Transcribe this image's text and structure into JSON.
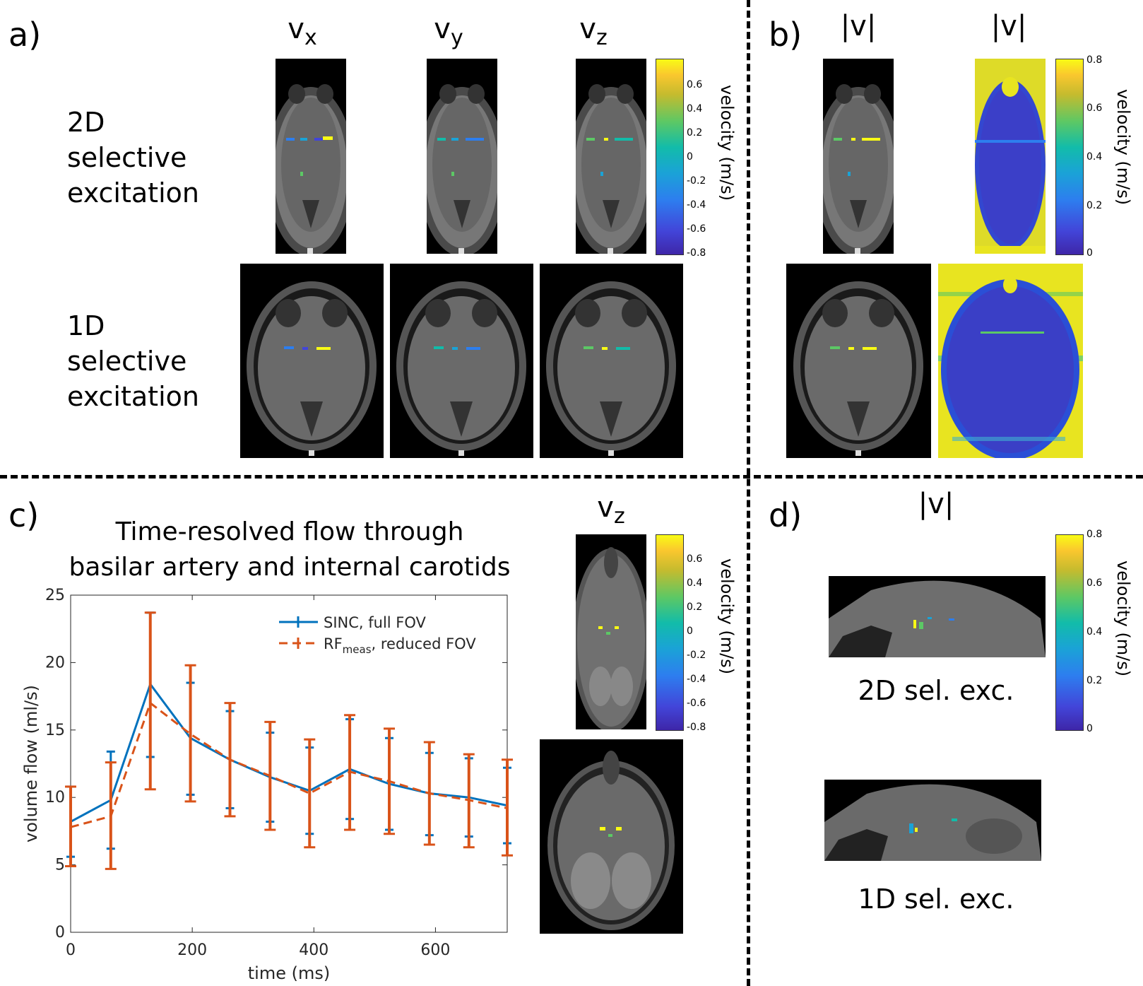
{
  "panels": {
    "a": {
      "label": "a)",
      "col_headers": [
        "v",
        "x",
        "v",
        "y",
        "v",
        "z"
      ],
      "row_labels": {
        "r2d": [
          "2D",
          "selective",
          "excitation"
        ],
        "r1d": [
          "1D",
          "selective",
          "excitation"
        ]
      },
      "colorbar": {
        "label": "velocity (m/s)",
        "ticks": [
          "0.6",
          "0.4",
          "0.2",
          "0",
          "-0.2",
          "-0.4",
          "-0.6",
          "-0.8"
        ]
      }
    },
    "b": {
      "label": "b)",
      "col_headers": [
        "|v|",
        "|v|"
      ],
      "colorbar": {
        "label": "velocity (m/s)",
        "ticks": [
          "0.8",
          "0.6",
          "0.4",
          "0.2",
          "0"
        ]
      }
    },
    "c": {
      "label": "c)",
      "image_header": [
        "v",
        "z"
      ],
      "colorbar": {
        "label": "velocity (m/s)",
        "ticks": [
          "0.6",
          "0.4",
          "0.2",
          "0",
          "-0.2",
          "-0.4",
          "-0.6",
          "-0.8"
        ]
      }
    },
    "d": {
      "label": "d)",
      "header": "|v|",
      "captions": [
        "2D sel. exc.",
        "1D sel. exc."
      ],
      "colorbar": {
        "label": "velocity (m/s)",
        "ticks": [
          "0.8",
          "0.6",
          "0.4",
          "0.2",
          "0"
        ]
      }
    }
  },
  "chart_data": {
    "type": "line",
    "title": "Time-resolved flow through basilar artery and internal carotids",
    "title_lines": [
      "Time-resolved flow through",
      "basilar artery and internal carotids"
    ],
    "xlabel": "time (ms)",
    "ylabel": "volume flow (ml/s)",
    "xlim": [
      0,
      718
    ],
    "ylim": [
      0,
      25
    ],
    "xticks": [
      0,
      200,
      400,
      600
    ],
    "yticks": [
      0,
      5,
      10,
      15,
      20,
      25
    ],
    "legend_position": "top-right",
    "series": [
      {
        "name": "SINC, full FOV",
        "color": "#0072bd",
        "style": "solid",
        "x": [
          0,
          66,
          131,
          197,
          262,
          328,
          393,
          459,
          524,
          590,
          655,
          718
        ],
        "values": [
          8.2,
          9.8,
          18.4,
          14.4,
          12.8,
          11.5,
          10.5,
          12.1,
          11.0,
          10.3,
          10.0,
          9.4
        ],
        "err_low": [
          5.6,
          6.2,
          13.0,
          10.2,
          9.2,
          8.2,
          7.3,
          8.4,
          7.6,
          7.2,
          7.1,
          6.6
        ],
        "err_high": [
          10.8,
          13.4,
          23.7,
          18.5,
          16.4,
          14.8,
          13.7,
          15.8,
          14.4,
          13.3,
          12.9,
          12.2
        ]
      },
      {
        "name": "RF",
        "name_sub": "meas",
        "name_rest": ", reduced FOV",
        "color": "#d95319",
        "style": "dashed",
        "x": [
          0,
          66,
          131,
          197,
          262,
          328,
          393,
          459,
          524,
          590,
          655,
          718
        ],
        "values": [
          7.8,
          8.6,
          17.0,
          14.7,
          12.8,
          11.6,
          10.3,
          11.9,
          11.2,
          10.3,
          9.8,
          9.2
        ],
        "err_low": [
          4.9,
          4.7,
          10.6,
          9.7,
          8.6,
          7.6,
          6.3,
          7.6,
          7.3,
          6.5,
          6.3,
          5.7
        ],
        "err_high": [
          10.8,
          12.6,
          23.7,
          19.8,
          17.0,
          15.6,
          14.3,
          16.1,
          15.1,
          14.1,
          13.2,
          12.8
        ]
      }
    ]
  }
}
